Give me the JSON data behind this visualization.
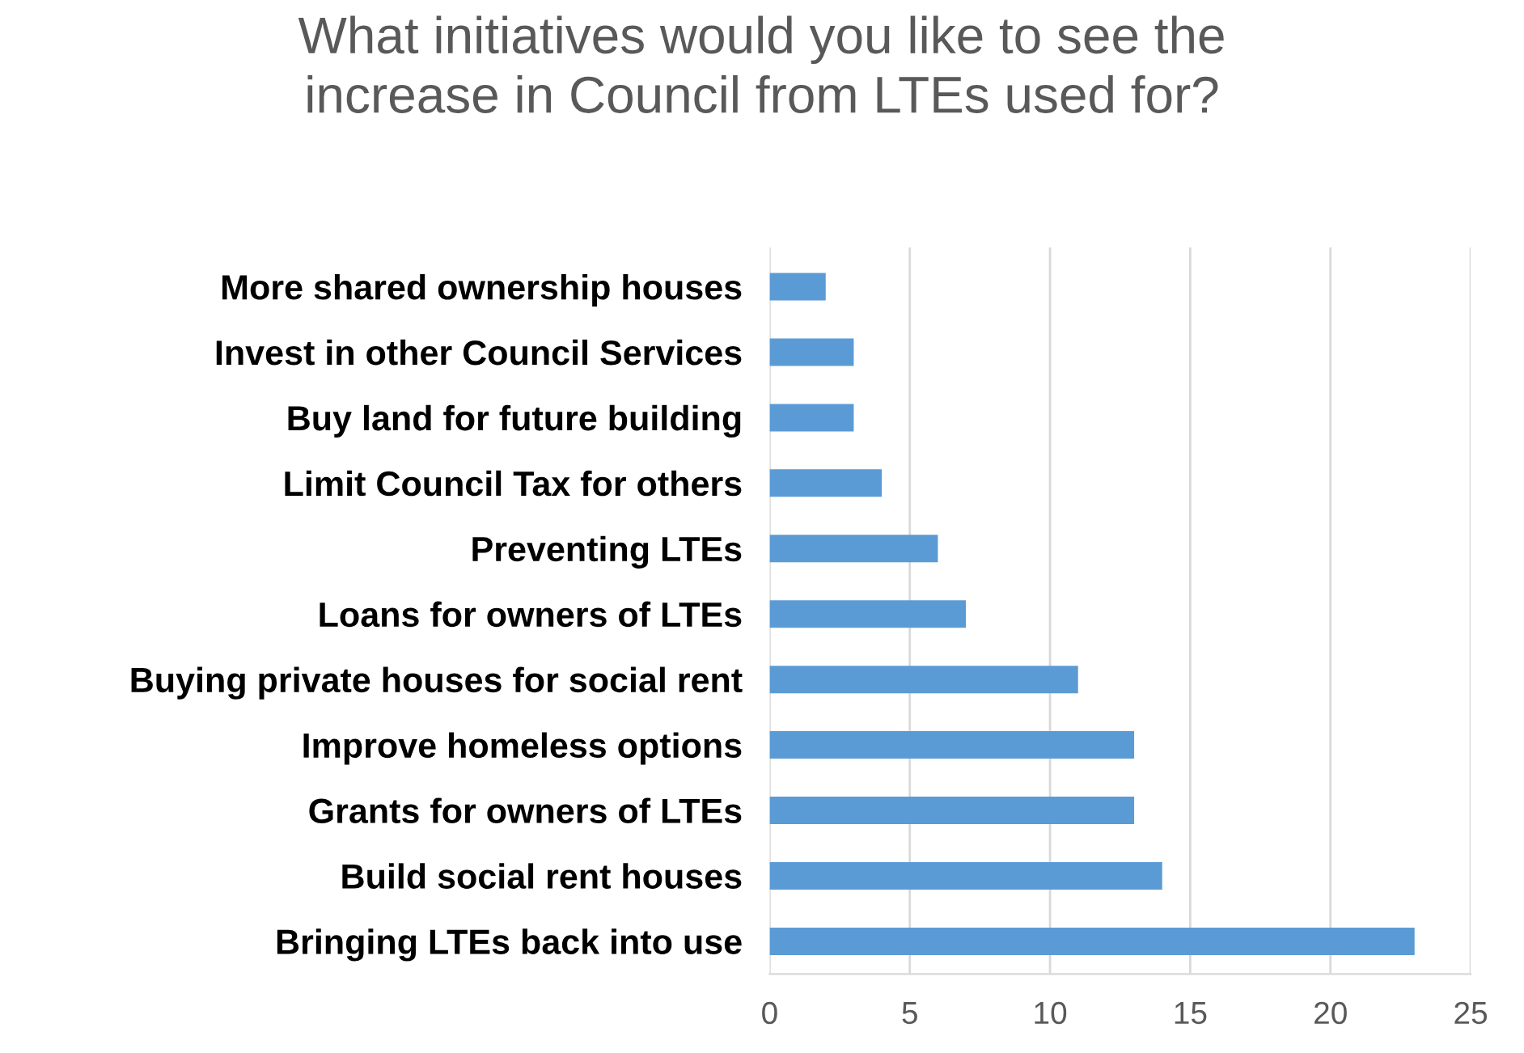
{
  "chart_data": {
    "type": "bar",
    "orientation": "horizontal",
    "title": "What initiatives would you like to see the\nincrease in Council from LTEs used for?",
    "categories": [
      "More shared ownership houses",
      "Invest in other Council Services",
      "Buy land for future building",
      "Limit Council Tax for others",
      "Preventing LTEs",
      "Loans for owners of LTEs",
      "Buying private houses for social rent",
      "Improve homeless options",
      "Grants for owners of LTEs",
      "Build social rent houses",
      "Bringing LTEs back into use"
    ],
    "values": [
      2,
      3,
      3,
      4,
      6,
      7,
      11,
      13,
      13,
      14,
      23
    ],
    "color": "#5b9bd5",
    "xlim": [
      0,
      25
    ],
    "xticks": [
      0,
      5,
      10,
      15,
      20,
      25
    ],
    "grid": "x"
  }
}
